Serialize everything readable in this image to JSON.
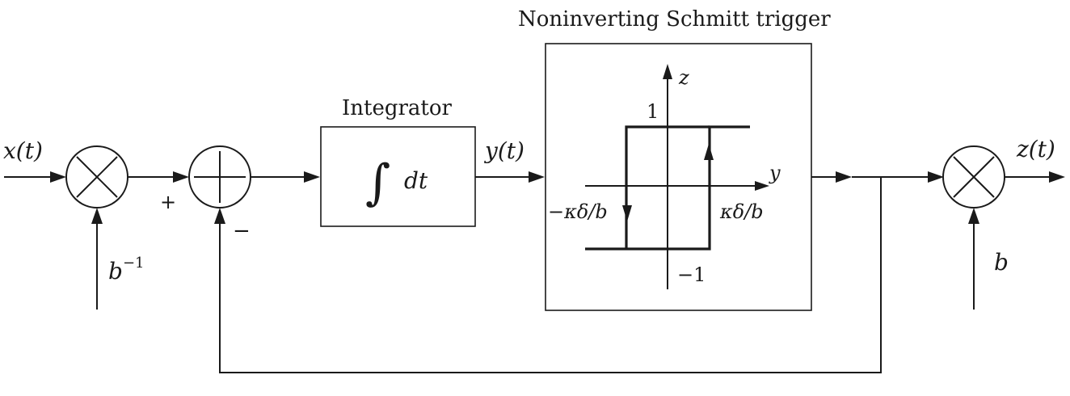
{
  "blocks": {
    "schmitt_title": "Noninverting Schmitt trigger",
    "integrator_title": "Integrator",
    "integral_symbol": "∫",
    "integral_dt": "dt"
  },
  "signals": {
    "input": "x(t)",
    "integrator_output": "y(t)",
    "output": "z(t)",
    "input_gain": "b",
    "input_gain_exp": "−1",
    "output_gain": "b"
  },
  "summer_signs": {
    "plus": "+",
    "minus": "−"
  },
  "hysteresis": {
    "y_axis": "z",
    "x_axis": "y",
    "upper_level": "1",
    "lower_level": "−1",
    "left_threshold": "−κδ/b",
    "right_threshold": "κδ/b"
  }
}
